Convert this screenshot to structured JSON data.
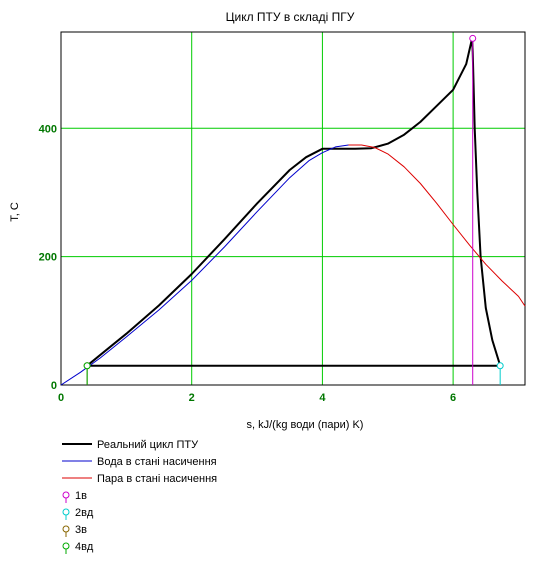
{
  "chart_data": {
    "type": "line",
    "title": "Цикл ПТУ в складі ПГУ",
    "xlabel": "s, kJ/(kg води (пари) K)",
    "ylabel": "T, C",
    "xlim": [
      0,
      7.1
    ],
    "ylim": [
      0,
      550
    ],
    "x_ticks": [
      0,
      2,
      4,
      6
    ],
    "y_ticks": [
      0,
      200,
      400
    ],
    "x_tick_labels": [
      "0",
      "2",
      "4",
      "6"
    ],
    "y_tick_labels": [
      "0",
      "200",
      "400"
    ],
    "x_grid_lines": [
      2,
      4,
      6
    ],
    "y_grid_lines": [
      200,
      400
    ],
    "grid": true,
    "grid_color": "#00cc00",
    "legend_placement": "below-left",
    "series": [
      {
        "name": "Реальний цикл ПТУ",
        "color": "#000000",
        "points": [
          [
            0.4,
            30
          ],
          [
            6.72,
            30
          ],
          [
            6.6,
            70
          ],
          [
            6.5,
            120
          ],
          [
            6.42,
            200
          ],
          [
            6.37,
            300
          ],
          [
            6.33,
            400
          ],
          [
            6.3,
            520
          ],
          [
            6.29,
            540
          ],
          [
            6.2,
            500
          ],
          [
            6.0,
            460
          ],
          [
            5.75,
            435
          ],
          [
            5.5,
            410
          ],
          [
            5.25,
            390
          ],
          [
            5.0,
            376
          ],
          [
            4.75,
            369
          ],
          [
            4.5,
            368
          ],
          [
            4.0,
            368
          ],
          [
            3.75,
            355
          ],
          [
            3.5,
            335
          ],
          [
            3.0,
            283
          ],
          [
            2.5,
            227
          ],
          [
            2.0,
            173
          ],
          [
            1.5,
            124
          ],
          [
            1.0,
            80
          ],
          [
            0.7,
            55
          ],
          [
            0.4,
            30
          ]
        ]
      },
      {
        "name": "Вода в стані насичення",
        "color": "#0000cc",
        "points": [
          [
            0.0,
            0
          ],
          [
            0.3,
            20
          ],
          [
            0.6,
            42
          ],
          [
            1.0,
            75
          ],
          [
            1.5,
            117
          ],
          [
            2.0,
            163
          ],
          [
            2.5,
            215
          ],
          [
            3.0,
            270
          ],
          [
            3.5,
            323
          ],
          [
            3.8,
            350
          ],
          [
            4.0,
            362
          ],
          [
            4.2,
            371
          ],
          [
            4.4,
            374
          ]
        ]
      },
      {
        "name": "Пара в стані насичення",
        "color": "#dd0000",
        "points": [
          [
            4.4,
            374
          ],
          [
            4.6,
            374
          ],
          [
            4.8,
            370
          ],
          [
            5.0,
            360
          ],
          [
            5.25,
            340
          ],
          [
            5.5,
            314
          ],
          [
            5.75,
            283
          ],
          [
            6.0,
            250
          ],
          [
            6.25,
            218
          ],
          [
            6.5,
            188
          ],
          [
            6.75,
            162
          ],
          [
            7.0,
            138
          ],
          [
            7.1,
            123
          ]
        ]
      },
      {
        "name": "1в",
        "color": "#cc00cc",
        "marker": "circle",
        "points": [
          [
            6.3,
            540
          ]
        ]
      },
      {
        "name": "2вд",
        "color": "#00cccc",
        "marker": "circle",
        "points": [
          [
            6.72,
            30
          ]
        ]
      },
      {
        "name": "3в",
        "color": "#886600",
        "marker": "circle",
        "points": [
          [
            0.4,
            30
          ]
        ]
      },
      {
        "name": "4вд",
        "color": "#00aa00",
        "marker": "circle",
        "points": [
          [
            0.4,
            30
          ]
        ]
      }
    ],
    "drop_lines": [
      {
        "series": "1в",
        "color": "#cc00cc",
        "x": 6.3,
        "y": 540
      },
      {
        "series": "2вд",
        "color": "#00cccc",
        "x": 6.72,
        "y": 30
      },
      {
        "series": "3в",
        "color": "#886600",
        "x": 0.4,
        "y": 30
      },
      {
        "series": "4вд",
        "color": "#00aa00",
        "x": 0.4,
        "y": 30
      }
    ]
  }
}
